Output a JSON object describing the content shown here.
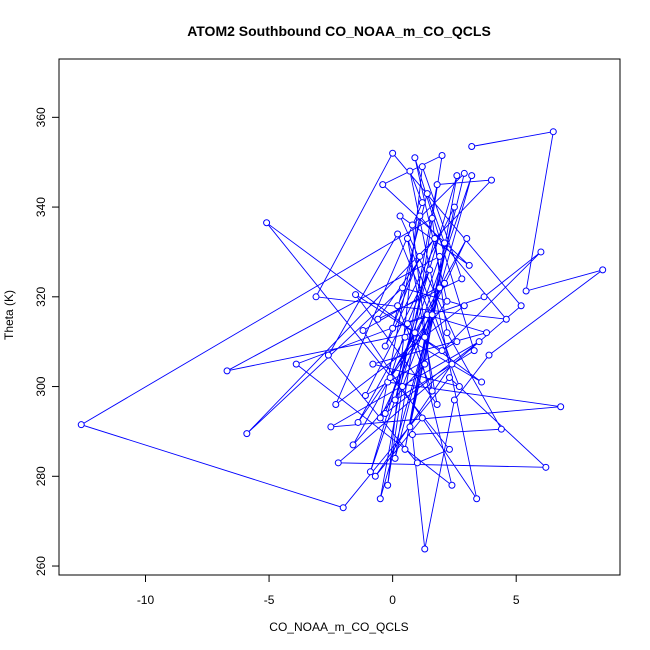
{
  "chart_data": {
    "type": "line",
    "title": "ATOM2 Southbound CO_NOAA_m_CO_QCLS",
    "xlabel": "CO_NOAA_m_CO_QCLS",
    "ylabel": "Theta (K)",
    "xlim": [
      -13.5,
      9.2
    ],
    "ylim": [
      258,
      373
    ],
    "xticks": [
      -10,
      -5,
      0,
      5
    ],
    "yticks": [
      260,
      280,
      300,
      320,
      340,
      360
    ],
    "grid": false,
    "legend": "none",
    "marker": "open-circle",
    "color": "#0000ff",
    "series": [
      {
        "x": [
          3.2,
          6.5,
          5.4,
          8.5,
          3.9,
          2.5,
          1.3,
          0.8,
          4.4,
          2.2,
          1.6,
          -12.6,
          -2.0,
          2.3,
          6.2,
          -2.2,
          5.2,
          0.0,
          -3.1,
          4.6,
          1.1,
          -0.5,
          3.0,
          -1.6,
          1.3,
          2.6,
          -0.9,
          3.2,
          -0.5,
          1.8,
          4.0,
          -5.9,
          0.4,
          2.9,
          -2.3,
          1.2,
          0.7,
          3.4,
          -1.2,
          2.1,
          -0.2,
          6.8,
          -2.5,
          3.5,
          -0.3,
          1.9,
          -6.7,
          0.9,
          2.4,
          -3.9,
          1.4,
          3.8,
          -0.8,
          2.7,
          0.2,
          -2.6,
          1.0,
          2.3,
          -5.1,
          3.6,
          0.5,
          -1.4,
          1.6,
          0.1,
          2.0,
          -0.4,
          3.1,
          0.3,
          2.6,
          -1.1,
          1.5,
          0.6,
          -0.1,
          2.2,
          0.9,
          3.3,
          0.1,
          1.7,
          -0.6,
          2.8,
          1.2,
          -0.2,
          0.4,
          1.9,
          0.7,
          2.5,
          -0.3,
          1.1,
          0.2,
          1.6,
          0.8,
          2.9,
          1.3,
          0.5,
          2.1,
          1.4,
          0.0,
          3.7,
          6.0,
          2.0,
          -1.5,
          1.8,
          0.6,
          2.4,
          -0.7,
          1.2
        ],
        "y": [
          353.5,
          356.8,
          321.3,
          326.0,
          307.0,
          297.0,
          263.8,
          289.3,
          290.5,
          312.0,
          337.5,
          291.5,
          273.0,
          302.0,
          282.0,
          283.0,
          318.0,
          352.0,
          320.0,
          315.0,
          338.0,
          293.0,
          333.0,
          287.0,
          305.0,
          347.0,
          281.0,
          347.0,
          275.0,
          345.0,
          346.0,
          289.5,
          322.0,
          318.0,
          296.0,
          341.0,
          348.0,
          275.0,
          312.5,
          323.0,
          301.0,
          295.5,
          291.0,
          310.0,
          294.0,
          329.0,
          303.5,
          312.0,
          278.0,
          305.0,
          316.0,
          312.0,
          305.0,
          300.0,
          334.0,
          307.0,
          283.0,
          286.0,
          336.5,
          301.0,
          311.0,
          292.0,
          316.0,
          284.0,
          351.5,
          345.0,
          327.0,
          338.0,
          310.0,
          298.0,
          326.0,
          314.0,
          302.0,
          319.0,
          351.0,
          308.0,
          297.0,
          333.0,
          315.0,
          324.0,
          349.0,
          278.0,
          300.0,
          322.0,
          291.0,
          340.0,
          309.0,
          329.0,
          318.0,
          299.0,
          336.0,
          347.5,
          311.0,
          286.0,
          332.0,
          343.0,
          313.0,
          320.0,
          330.0,
          308.0,
          320.5,
          296.0,
          333.0,
          305.0,
          280.0,
          293.0
        ]
      }
    ]
  }
}
